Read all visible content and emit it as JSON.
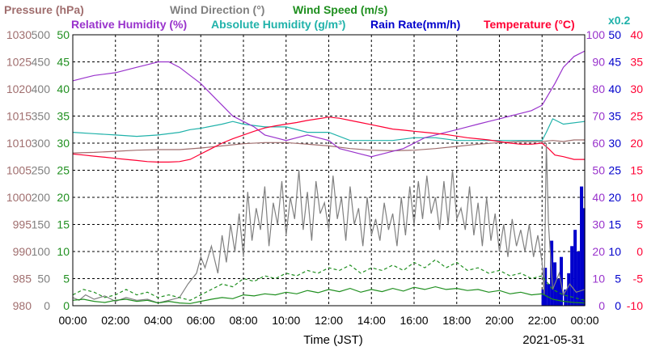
{
  "chart_data": {
    "type": "line",
    "xlabel": "Time (JST)",
    "date": "2021-05-31",
    "x_ticks": [
      "00:00",
      "02:00",
      "04:00",
      "06:00",
      "08:00",
      "10:00",
      "12:00",
      "14:00",
      "16:00",
      "18:00",
      "20:00",
      "22:00",
      "00:00"
    ],
    "grid": true,
    "legend": {
      "row1": [
        {
          "key": "pressure",
          "label": "Pressure (hPa)",
          "color": "#a06e6e"
        },
        {
          "key": "wind_dir",
          "label": "Wind Direction (°)",
          "color": "#808080"
        },
        {
          "key": "wind_speed",
          "label": "Wind Speed (m/s)",
          "color": "#1f8f1f"
        }
      ],
      "row2": [
        {
          "key": "rh",
          "label": "Relative Humidity (%)",
          "color": "#9933cc"
        },
        {
          "key": "ah",
          "label": "Absolute Humidity (g/m³)",
          "color": "#20b2aa"
        },
        {
          "key": "rain",
          "label": "Rain Rate(mm/h)",
          "color": "#0000cc"
        },
        {
          "key": "temp",
          "label": "Temperature (°C)",
          "color": "#ff0033"
        }
      ],
      "ah_scale_note": "x0.2"
    },
    "axes": {
      "pressure": {
        "color": "#a06e6e",
        "ylim": [
          980,
          1030
        ],
        "ticks": [
          "1030",
          "1025",
          "1020",
          "1015",
          "1010",
          "1005",
          "1000",
          "995",
          "990",
          "985",
          "980"
        ]
      },
      "wind_dir": {
        "color": "#808080",
        "ylim": [
          0,
          500
        ],
        "ticks": [
          "500",
          "450",
          "400",
          "350",
          "300",
          "250",
          "200",
          "150",
          "100",
          "50",
          "0"
        ]
      },
      "wind_speed": {
        "color": "#1f8f1f",
        "ylim": [
          0,
          50
        ],
        "ticks": [
          "50",
          "45",
          "40",
          "35",
          "30",
          "25",
          "20",
          "15",
          "10",
          "5",
          "0"
        ]
      },
      "rh": {
        "color": "#9933cc",
        "ylim": [
          0,
          100
        ],
        "ticks": [
          "100",
          "90",
          "80",
          "70",
          "60",
          "50",
          "40",
          "30",
          "20",
          "10",
          "0"
        ]
      },
      "rain": {
        "color": "#0000cc",
        "ylim": [
          0,
          50
        ],
        "ticks": [
          "50",
          "45",
          "40",
          "35",
          "30",
          "25",
          "20",
          "15",
          "10",
          "5",
          "0"
        ]
      },
      "temp": {
        "color": "#ff0033",
        "ylim": [
          -10,
          40
        ],
        "ticks": [
          "40",
          "35",
          "30",
          "25",
          "20",
          "15",
          "10",
          "5",
          "0",
          "-5",
          "-10"
        ]
      }
    },
    "series": [
      {
        "key": "pressure",
        "axis": "pressure",
        "color": "#a06e6e",
        "x": [
          0,
          1,
          2,
          3,
          4,
          5,
          6,
          7,
          8,
          9,
          10,
          11,
          12,
          13,
          14,
          15,
          16,
          17,
          18,
          19,
          20,
          21,
          22,
          22.5,
          23,
          23.5,
          24
        ],
        "y": [
          1008.2,
          1008.3,
          1008.5,
          1008.7,
          1008.8,
          1008.8,
          1009.1,
          1009.5,
          1009.9,
          1010.1,
          1010.1,
          1009.8,
          1009.5,
          1009.0,
          1008.7,
          1008.6,
          1008.7,
          1009.0,
          1009.4,
          1009.8,
          1010.1,
          1010.3,
          1010.3,
          1010.5,
          1010.3,
          1010.6,
          1010.6
        ]
      },
      {
        "key": "ah",
        "axis": "rh",
        "color": "#20b2aa",
        "x": [
          0,
          1,
          2,
          3,
          4,
          5,
          5.5,
          6,
          7,
          7.5,
          8,
          9,
          10,
          11,
          11.5,
          12,
          13,
          14,
          15,
          16,
          17,
          18,
          19,
          20,
          21,
          21.5,
          22,
          22.2,
          22.5,
          23,
          24
        ],
        "y": [
          64,
          63.5,
          63,
          62.5,
          63,
          64,
          65,
          65.5,
          67,
          68,
          67,
          66,
          66,
          64,
          64,
          64,
          61,
          61,
          61,
          62,
          62,
          61,
          61,
          61,
          61,
          61,
          61,
          64,
          69,
          67,
          68
        ]
      },
      {
        "key": "rh",
        "axis": "rh",
        "color": "#9933cc",
        "x": [
          0,
          0.5,
          1,
          2,
          3,
          3.5,
          4,
          4.5,
          5,
          5.5,
          6,
          6.5,
          7,
          7.5,
          8,
          8.5,
          9,
          9.5,
          10,
          10.5,
          11,
          11.5,
          12,
          12.5,
          13,
          13.5,
          14,
          14.5,
          15,
          15.5,
          16,
          16.5,
          17,
          17.5,
          18,
          18.5,
          19,
          19.5,
          20,
          20.5,
          21,
          21.5,
          22,
          22.3,
          22.6,
          23,
          23.5,
          24
        ],
        "y": [
          83,
          84,
          85,
          86,
          88,
          89,
          90,
          90,
          88,
          85,
          82,
          78,
          74,
          70,
          68,
          66,
          63,
          62,
          61,
          62,
          63,
          62,
          61,
          58,
          57,
          56,
          55,
          56,
          57,
          58,
          60,
          62,
          63,
          64,
          65,
          66,
          67,
          68,
          69,
          70,
          71,
          72,
          74,
          78,
          82,
          88,
          92,
          94
        ]
      },
      {
        "key": "temp",
        "axis": "temp",
        "color": "#ff0033",
        "x": [
          0,
          0.5,
          1,
          1.5,
          2,
          2.5,
          3,
          3.5,
          4,
          4.5,
          5,
          5.5,
          6,
          6.5,
          7,
          7.5,
          8,
          8.5,
          9,
          9.5,
          10,
          10.5,
          11,
          11.5,
          12,
          12.5,
          13,
          13.5,
          14,
          14.5,
          15,
          15.5,
          16,
          16.5,
          17,
          17.5,
          18,
          18.5,
          19,
          19.5,
          20,
          20.5,
          21,
          21.5,
          22,
          22.3,
          22.6,
          23,
          23.5,
          24
        ],
        "y": [
          18.0,
          17.8,
          17.6,
          17.4,
          17.2,
          17.0,
          16.8,
          16.6,
          16.5,
          16.5,
          16.6,
          17.0,
          18.0,
          19.0,
          20.0,
          20.8,
          21.5,
          22.2,
          22.8,
          23.2,
          23.5,
          23.8,
          24.2,
          24.5,
          24.8,
          24.6,
          24.2,
          23.8,
          23.4,
          23.0,
          22.6,
          22.4,
          22.2,
          22.0,
          21.8,
          21.6,
          21.3,
          21.0,
          20.8,
          20.6,
          20.3,
          20.0,
          19.8,
          19.8,
          20.0,
          19.0,
          17.8,
          17.5,
          17.0,
          17.0
        ]
      },
      {
        "key": "wind_dir",
        "axis": "wind_dir",
        "color": "#808080",
        "x": [
          0,
          0.3,
          0.6,
          1,
          1.5,
          2,
          2.5,
          3,
          3.5,
          4,
          4.5,
          5,
          5.4,
          5.8,
          6,
          6.2,
          6.5,
          6.8,
          7,
          7.2,
          7.4,
          7.6,
          7.8,
          8,
          8.2,
          8.4,
          8.6,
          8.8,
          9,
          9.2,
          9.4,
          9.6,
          9.8,
          10,
          10.2,
          10.4,
          10.6,
          10.8,
          11,
          11.2,
          11.4,
          11.6,
          11.8,
          12,
          12.2,
          12.4,
          12.6,
          12.8,
          13,
          13.2,
          13.4,
          13.6,
          13.8,
          14,
          14.2,
          14.4,
          14.6,
          14.8,
          15,
          15.2,
          15.4,
          15.6,
          15.8,
          16,
          16.2,
          16.4,
          16.6,
          16.8,
          17,
          17.2,
          17.4,
          17.6,
          17.8,
          18,
          18.2,
          18.4,
          18.6,
          18.8,
          19,
          19.2,
          19.4,
          19.6,
          19.8,
          20,
          20.2,
          20.4,
          20.6,
          20.8,
          21,
          21.2,
          21.4,
          21.6,
          21.8,
          22,
          22.1,
          22.2,
          22.3,
          22.5,
          22.8,
          23,
          23.3,
          23.6,
          24
        ],
        "y": [
          15,
          10,
          20,
          12,
          18,
          8,
          15,
          10,
          12,
          5,
          10,
          15,
          40,
          60,
          90,
          70,
          110,
          60,
          130,
          80,
          150,
          100,
          170,
          90,
          210,
          120,
          180,
          140,
          220,
          110,
          190,
          150,
          230,
          130,
          200,
          160,
          250,
          140,
          210,
          120,
          230,
          170,
          190,
          140,
          240,
          160,
          200,
          120,
          220,
          150,
          180,
          110,
          200,
          130,
          160,
          120,
          190,
          140,
          170,
          110,
          200,
          130,
          220,
          150,
          230,
          160,
          240,
          170,
          200,
          140,
          230,
          150,
          250,
          160,
          180,
          140,
          220,
          130,
          190,
          110,
          200,
          120,
          170,
          100,
          150,
          90,
          160,
          110,
          140,
          100,
          150,
          90,
          130,
          80,
          20,
          300,
          150,
          30,
          60,
          20,
          40,
          25,
          30
        ]
      },
      {
        "key": "wind_speed_max",
        "axis": "wind_speed",
        "color": "#1f8f1f",
        "dash": "4,3",
        "x": [
          0,
          0.5,
          1,
          1.5,
          2,
          2.5,
          3,
          3.5,
          4,
          4.5,
          5,
          5.5,
          6,
          6.5,
          7,
          7.5,
          8,
          8.5,
          9,
          9.5,
          10,
          10.5,
          11,
          11.5,
          12,
          12.5,
          13,
          13.5,
          14,
          14.5,
          15,
          15.5,
          16,
          16.5,
          17,
          17.5,
          18,
          18.5,
          19,
          19.5,
          20,
          20.5,
          21,
          21.5,
          22,
          22.5,
          23,
          23.5,
          24
        ],
        "y": [
          2,
          3,
          2.5,
          1.5,
          2,
          3,
          2,
          2.5,
          1.5,
          2,
          1.5,
          1,
          2,
          3,
          4,
          3.5,
          5,
          4.5,
          5.5,
          5,
          6,
          5.5,
          6.5,
          6,
          7,
          6.5,
          7.5,
          6,
          7,
          6.5,
          7.5,
          6.5,
          8,
          7,
          8.5,
          7,
          8,
          6.5,
          7,
          6,
          6.5,
          5.5,
          6,
          5,
          5.5,
          3,
          2,
          1.5,
          1
        ]
      },
      {
        "key": "wind_speed",
        "axis": "wind_speed",
        "color": "#1f8f1f",
        "x": [
          0,
          0.5,
          1,
          1.5,
          2,
          2.5,
          3,
          3.5,
          4,
          4.5,
          5,
          5.5,
          6,
          6.5,
          7,
          7.5,
          8,
          8.5,
          9,
          9.5,
          10,
          10.5,
          11,
          11.5,
          12,
          12.5,
          13,
          13.5,
          14,
          14.5,
          15,
          15.5,
          16,
          16.5,
          17,
          17.5,
          18,
          18.5,
          19,
          19.5,
          20,
          20.5,
          21,
          21.5,
          22,
          22.5,
          23,
          23.5,
          24
        ],
        "y": [
          1,
          1.2,
          0.8,
          0.6,
          1,
          1.2,
          0.8,
          1,
          0.5,
          0.8,
          0.5,
          0.4,
          0.8,
          1.2,
          1.5,
          1.3,
          2,
          1.8,
          2.2,
          2,
          2.5,
          2.2,
          2.8,
          2.4,
          3,
          2.6,
          3.2,
          2.5,
          3,
          2.6,
          3.2,
          2.7,
          3.4,
          3,
          3.5,
          3,
          3.2,
          2.8,
          3,
          2.5,
          2.8,
          2.2,
          2.5,
          2,
          2.2,
          1.2,
          0.8,
          0.6,
          0.5
        ]
      }
    ],
    "rain_bars": {
      "axis": "rain",
      "color": "#0000cc",
      "x": [
        22.05,
        22.15,
        22.3,
        22.45,
        22.6,
        22.75,
        22.9,
        23.1,
        23.25,
        23.4,
        23.55,
        23.7,
        23.85,
        23.95
      ],
      "y": [
        3,
        7,
        4,
        12,
        8,
        5,
        9,
        3,
        6,
        11,
        14,
        10,
        22,
        18
      ]
    }
  }
}
